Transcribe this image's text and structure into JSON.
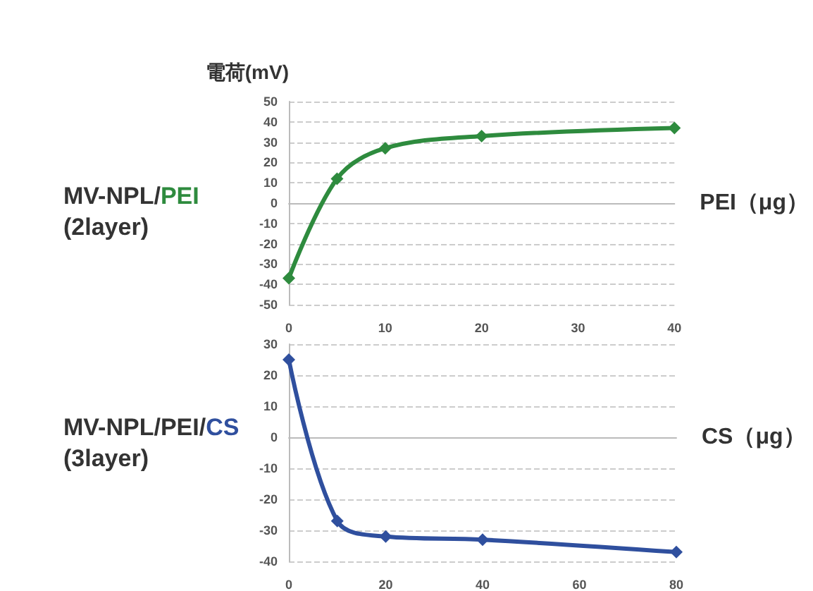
{
  "chart_data": [
    {
      "type": "line",
      "ylabel": "電荷(mV)",
      "xlabel": "PEI（μg）",
      "annotations": [
        "MV-NPL/PEI\n(2layer)"
      ],
      "x": [
        0,
        5,
        10,
        20,
        40
      ],
      "xlim": [
        0,
        40
      ],
      "xticks": [
        0,
        10,
        20,
        30,
        40
      ],
      "ylim": [
        -50,
        50
      ],
      "yticks": [
        -50,
        -40,
        -30,
        -20,
        -10,
        0,
        10,
        20,
        30,
        40,
        50
      ],
      "series": [
        {
          "color": "#2e8b3e",
          "values": [
            -37,
            12,
            27,
            33,
            37
          ]
        }
      ],
      "grid": "y",
      "marker": "diamond",
      "line_style": "solid"
    },
    {
      "type": "line",
      "xlabel": "CS（μg）",
      "annotations": [
        "MV-NPL/PEI/CS\n(3layer)"
      ],
      "x": [
        0,
        10,
        20,
        40,
        80
      ],
      "xlim": [
        0,
        80
      ],
      "xticks": [
        0,
        20,
        40,
        60,
        80
      ],
      "ylim": [
        -40,
        30
      ],
      "yticks": [
        -40,
        -30,
        -20,
        -10,
        0,
        10,
        20,
        30
      ],
      "series": [
        {
          "color": "#2f4f9e",
          "values": [
            25,
            -27,
            -32,
            -33,
            -37
          ]
        }
      ],
      "grid": "y",
      "marker": "diamond",
      "line_style": "solid"
    }
  ]
}
